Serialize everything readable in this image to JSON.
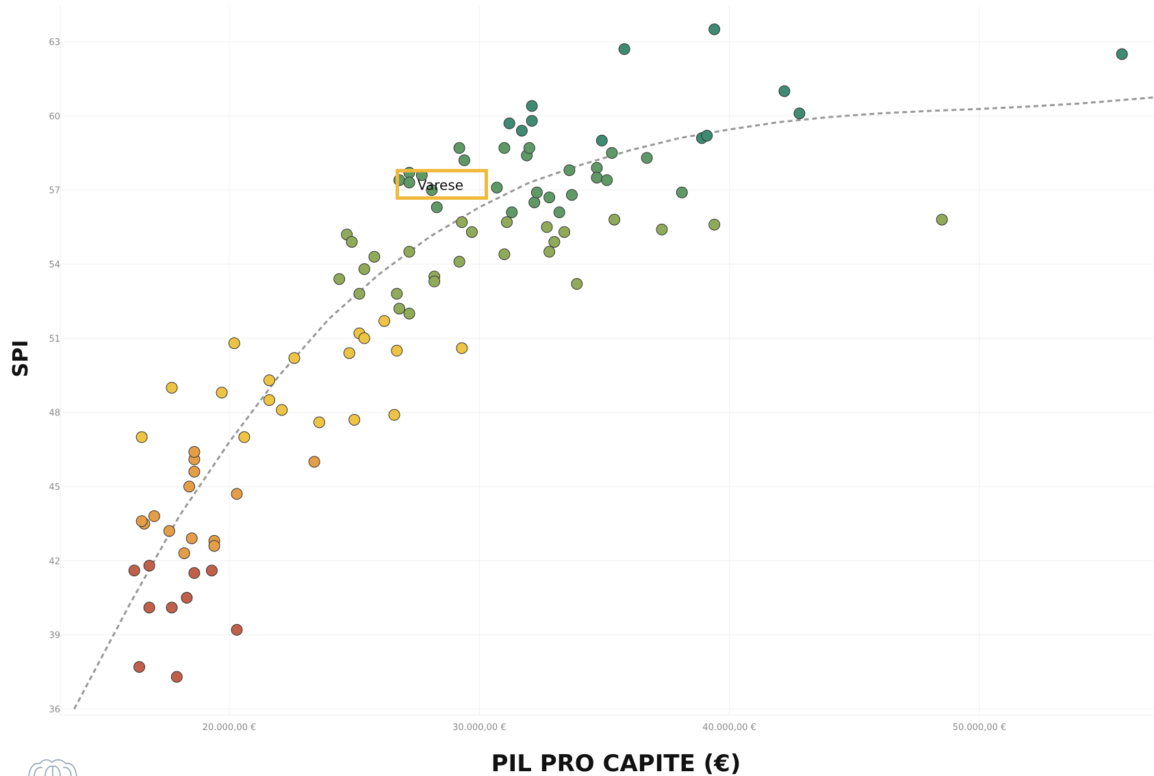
{
  "chart_data": {
    "type": "scatter",
    "xlabel": "PIL PRO CAPITE (€)",
    "ylabel": "SPI",
    "xlim": [
      13800,
      57000
    ],
    "ylim": [
      35.8,
      64.5
    ],
    "x_ticks": [
      20000,
      30000,
      40000,
      50000
    ],
    "x_tick_labels": [
      "20.000,00 €",
      "30.000,00 €",
      "40.000,00 €",
      "50.000,00 €"
    ],
    "y_ticks": [
      36,
      39,
      42,
      45,
      48,
      51,
      54,
      57,
      60,
      63
    ],
    "y_tick_labels": [
      "36",
      "39",
      "42",
      "45",
      "48",
      "51",
      "54",
      "57",
      "60",
      "63"
    ],
    "grid": true,
    "trendline": {
      "style": "dashed",
      "color": "#999999",
      "points": [
        [
          13800,
          36.0
        ],
        [
          16000,
          40.2
        ],
        [
          18000,
          43.8
        ],
        [
          20000,
          46.8
        ],
        [
          22000,
          49.5
        ],
        [
          24000,
          51.8
        ],
        [
          26000,
          53.6
        ],
        [
          28000,
          55.1
        ],
        [
          30000,
          56.3
        ],
        [
          32000,
          57.3
        ],
        [
          34000,
          58.0
        ],
        [
          36000,
          58.6
        ],
        [
          38000,
          59.1
        ],
        [
          40000,
          59.45
        ],
        [
          42000,
          59.75
        ],
        [
          44000,
          59.95
        ],
        [
          46000,
          60.1
        ],
        [
          48000,
          60.2
        ],
        [
          50000,
          60.28
        ],
        [
          52000,
          60.38
        ],
        [
          54000,
          60.5
        ],
        [
          57000,
          60.75
        ]
      ]
    },
    "annotation": {
      "label": "Varese",
      "x": 28500,
      "y": 57.2,
      "box_color": "#f0b93a"
    },
    "color_scale": [
      {
        "min": -100,
        "max": 42.0,
        "color": "#c0604a"
      },
      {
        "min": 42.0,
        "max": 47.0,
        "color": "#e39e47"
      },
      {
        "min": 47.0,
        "max": 51.8,
        "color": "#eec445"
      },
      {
        "min": 51.8,
        "max": 56.0,
        "color": "#8fab5a"
      },
      {
        "min": 56.0,
        "max": 59.0,
        "color": "#5f9a66"
      },
      {
        "min": 59.0,
        "max": 100,
        "color": "#3f8a73"
      }
    ],
    "points": [
      [
        16400,
        37.7
      ],
      [
        17900,
        37.3
      ],
      [
        20300,
        39.2
      ],
      [
        18300,
        40.5
      ],
      [
        16800,
        40.1
      ],
      [
        17700,
        40.1
      ],
      [
        16200,
        41.6
      ],
      [
        16800,
        41.8
      ],
      [
        18600,
        41.5
      ],
      [
        19300,
        41.6
      ],
      [
        18200,
        42.3
      ],
      [
        18500,
        42.9
      ],
      [
        19400,
        42.8
      ],
      [
        19400,
        42.6
      ],
      [
        17600,
        43.2
      ],
      [
        16600,
        43.5
      ],
      [
        16500,
        43.6
      ],
      [
        17000,
        43.8
      ],
      [
        18400,
        45.0
      ],
      [
        18600,
        45.6
      ],
      [
        18600,
        46.1
      ],
      [
        18600,
        46.4
      ],
      [
        20300,
        44.7
      ],
      [
        23400,
        46.0
      ],
      [
        16500,
        47.0
      ],
      [
        17700,
        49.0
      ],
      [
        19700,
        48.8
      ],
      [
        20200,
        50.8
      ],
      [
        20600,
        47.0
      ],
      [
        21600,
        48.5
      ],
      [
        21600,
        49.3
      ],
      [
        22100,
        48.1
      ],
      [
        22600,
        50.2
      ],
      [
        23600,
        47.6
      ],
      [
        24800,
        50.4
      ],
      [
        25000,
        47.7
      ],
      [
        25200,
        51.2
      ],
      [
        25400,
        51.0
      ],
      [
        26200,
        51.7
      ],
      [
        26600,
        47.9
      ],
      [
        26700,
        50.5
      ],
      [
        29300,
        50.6
      ],
      [
        24400,
        53.4
      ],
      [
        24700,
        55.2
      ],
      [
        24900,
        54.9
      ],
      [
        25200,
        52.8
      ],
      [
        25400,
        53.8
      ],
      [
        25800,
        54.3
      ],
      [
        26700,
        52.8
      ],
      [
        26800,
        52.2
      ],
      [
        27200,
        52.0
      ],
      [
        27200,
        54.5
      ],
      [
        28200,
        53.5
      ],
      [
        28200,
        53.3
      ],
      [
        29200,
        54.1
      ],
      [
        29300,
        55.7
      ],
      [
        29700,
        55.3
      ],
      [
        31000,
        54.4
      ],
      [
        31100,
        55.7
      ],
      [
        31300,
        56.1
      ],
      [
        32700,
        55.5
      ],
      [
        32800,
        54.5
      ],
      [
        33000,
        54.9
      ],
      [
        33200,
        56.1
      ],
      [
        33400,
        55.3
      ],
      [
        33900,
        53.2
      ],
      [
        35400,
        55.8
      ],
      [
        37300,
        55.4
      ],
      [
        39400,
        55.6
      ],
      [
        48500,
        55.8
      ],
      [
        26800,
        57.4
      ],
      [
        27200,
        57.7
      ],
      [
        27200,
        57.3
      ],
      [
        27700,
        57.6
      ],
      [
        28100,
        57.0
      ],
      [
        28300,
        56.3
      ],
      [
        29200,
        58.7
      ],
      [
        29400,
        58.2
      ],
      [
        30700,
        57.1
      ],
      [
        31000,
        58.7
      ],
      [
        31200,
        59.7
      ],
      [
        31700,
        59.4
      ],
      [
        31900,
        58.4
      ],
      [
        32000,
        58.7
      ],
      [
        32100,
        59.8
      ],
      [
        32100,
        60.4
      ],
      [
        32200,
        56.5
      ],
      [
        32300,
        56.9
      ],
      [
        32800,
        56.7
      ],
      [
        33600,
        57.8
      ],
      [
        33700,
        56.8
      ],
      [
        34700,
        57.9
      ],
      [
        34700,
        57.5
      ],
      [
        34900,
        59.0
      ],
      [
        35100,
        57.4
      ],
      [
        35300,
        58.5
      ],
      [
        36700,
        58.3
      ],
      [
        38100,
        56.9
      ],
      [
        38900,
        59.1
      ],
      [
        39100,
        59.2
      ],
      [
        35800,
        62.7
      ],
      [
        39400,
        63.5
      ],
      [
        42200,
        61.0
      ],
      [
        42800,
        60.1
      ],
      [
        55700,
        62.5
      ]
    ]
  }
}
